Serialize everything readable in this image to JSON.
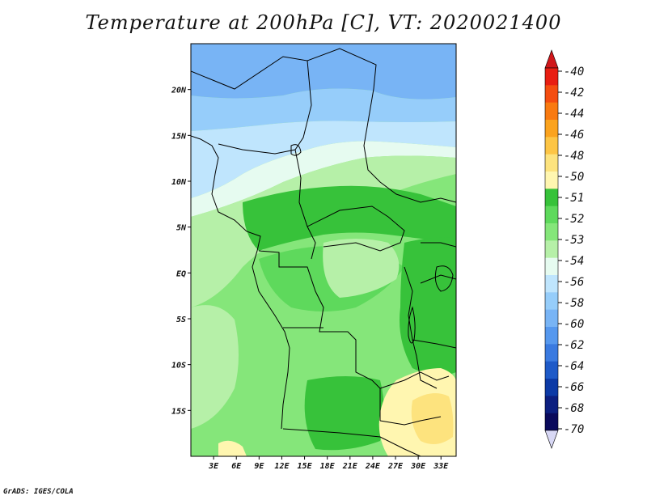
{
  "title": "Temperature at 200hPa [C], VT: 2020021400",
  "credit": "GrADS: IGES/COLA",
  "map": {
    "lon_range": [
      0,
      35
    ],
    "lat_range": [
      -20,
      25
    ],
    "lat_ticks": [
      {
        "value": 20,
        "label": "20N"
      },
      {
        "value": 15,
        "label": "15N"
      },
      {
        "value": 10,
        "label": "10N"
      },
      {
        "value": 5,
        "label": "5N"
      },
      {
        "value": 0,
        "label": "EQ"
      },
      {
        "value": -5,
        "label": "5S"
      },
      {
        "value": -10,
        "label": "10S"
      },
      {
        "value": -15,
        "label": "15S"
      }
    ],
    "lon_ticks": [
      {
        "value": 3,
        "label": "3E"
      },
      {
        "value": 6,
        "label": "6E"
      },
      {
        "value": 9,
        "label": "9E"
      },
      {
        "value": 12,
        "label": "12E"
      },
      {
        "value": 15,
        "label": "15E"
      },
      {
        "value": 18,
        "label": "18E"
      },
      {
        "value": 21,
        "label": "21E"
      },
      {
        "value": 24,
        "label": "24E"
      },
      {
        "value": 27,
        "label": "27E"
      },
      {
        "value": 30,
        "label": "30E"
      },
      {
        "value": 33,
        "label": "33E"
      }
    ]
  },
  "colorbar": {
    "labels": [
      "-40",
      "-42",
      "-44",
      "-46",
      "-48",
      "-50",
      "-51",
      "-52",
      "-53",
      "-54",
      "-56",
      "-58",
      "-60",
      "-62",
      "-64",
      "-66",
      "-68",
      "-70"
    ],
    "colors": [
      "#e81e12",
      "#f44d10",
      "#f97a10",
      "#fba31e",
      "#fdc545",
      "#fde37e",
      "#fff6b0",
      "#37c23a",
      "#5ed95c",
      "#85e67a",
      "#b6f0a8",
      "#e6fbf0",
      "#bfe5fd",
      "#96cdfa",
      "#78b4f5",
      "#5698ee",
      "#3a7ae0",
      "#1e5ac8",
      "#0c3aa6",
      "#0c1f80",
      "#0a0a5c"
    ],
    "arrow_top": "#d0161a",
    "arrow_bottom": "#d8d8f5"
  },
  "field_colors": {
    "t58": "#78b4f5",
    "t56": "#96cdfa",
    "t54": "#bfe5fd",
    "t53w": "#e6fbf0",
    "t53": "#b6f0a8",
    "t52": "#85e67a",
    "t52b": "#5ed95c",
    "t51": "#37c23a",
    "t50": "#fff6b0",
    "t49": "#fde37e"
  }
}
